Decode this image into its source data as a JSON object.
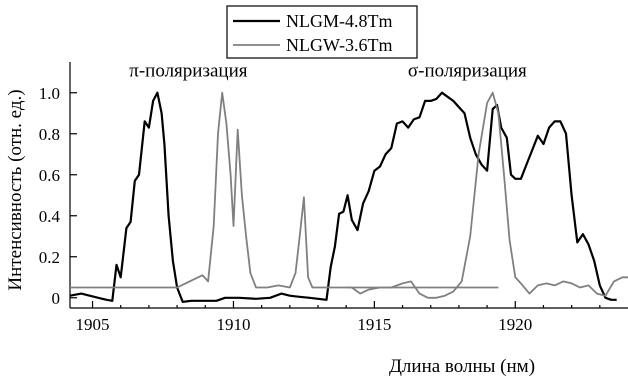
{
  "chart_data": {
    "type": "line",
    "title": "",
    "xlabel": "Длина волны (нм)",
    "ylabel": "Интенсивность (отн. ед.)",
    "xlim": [
      1904.2,
      1924
    ],
    "ylim": [
      -0.05,
      1.15
    ],
    "xticks": [
      1905,
      1910,
      1915,
      1920
    ],
    "yticks": [
      0,
      0.2,
      0.4,
      0.6,
      0.8,
      1.0
    ],
    "ytick_labels": [
      "0",
      "0.2",
      "0.4",
      "0.6",
      "0.8",
      "1.0"
    ],
    "grid": false,
    "legend_position": "top-center",
    "annotations": [
      {
        "text": "π-поляризация",
        "x": 1908.4,
        "y": 1.08
      },
      {
        "text": "σ-поляризация",
        "x": 1918.3,
        "y": 1.08
      }
    ],
    "series": [
      {
        "name": "NLGM-4.8Tm",
        "color": "#000000",
        "points": [
          [
            1904.2,
            0.01
          ],
          [
            1904.6,
            0.02
          ],
          [
            1904.9,
            0.01
          ],
          [
            1905.2,
            0.0
          ],
          [
            1905.5,
            -0.01
          ],
          [
            1905.7,
            -0.015
          ],
          [
            1905.85,
            0.16
          ],
          [
            1906.0,
            0.1
          ],
          [
            1906.2,
            0.34
          ],
          [
            1906.35,
            0.37
          ],
          [
            1906.5,
            0.57
          ],
          [
            1906.65,
            0.6
          ],
          [
            1906.85,
            0.86
          ],
          [
            1907.0,
            0.83
          ],
          [
            1907.15,
            0.96
          ],
          [
            1907.3,
            1.0
          ],
          [
            1907.45,
            0.9
          ],
          [
            1907.55,
            0.75
          ],
          [
            1907.7,
            0.4
          ],
          [
            1907.85,
            0.18
          ],
          [
            1908.0,
            0.05
          ],
          [
            1908.2,
            -0.02
          ],
          [
            1908.5,
            -0.015
          ],
          [
            1909.0,
            -0.015
          ],
          [
            1909.4,
            -0.015
          ],
          [
            1909.7,
            0.0
          ],
          [
            1910.2,
            0.0
          ],
          [
            1910.8,
            -0.005
          ],
          [
            1911.3,
            0.0
          ],
          [
            1911.7,
            0.02
          ],
          [
            1912.0,
            0.01
          ],
          [
            1912.3,
            0.005
          ],
          [
            1912.7,
            0.0
          ],
          [
            1913.0,
            -0.005
          ],
          [
            1913.3,
            -0.01
          ],
          [
            1913.45,
            0.15
          ],
          [
            1913.6,
            0.25
          ],
          [
            1913.75,
            0.41
          ],
          [
            1913.9,
            0.42
          ],
          [
            1914.05,
            0.5
          ],
          [
            1914.2,
            0.38
          ],
          [
            1914.4,
            0.33
          ],
          [
            1914.6,
            0.46
          ],
          [
            1914.8,
            0.52
          ],
          [
            1915.0,
            0.62
          ],
          [
            1915.2,
            0.64
          ],
          [
            1915.4,
            0.7
          ],
          [
            1915.6,
            0.73
          ],
          [
            1915.8,
            0.85
          ],
          [
            1916.0,
            0.86
          ],
          [
            1916.2,
            0.83
          ],
          [
            1916.4,
            0.87
          ],
          [
            1916.6,
            0.88
          ],
          [
            1916.8,
            0.96
          ],
          [
            1917.0,
            0.96
          ],
          [
            1917.2,
            0.97
          ],
          [
            1917.4,
            1.0
          ],
          [
            1917.6,
            0.98
          ],
          [
            1917.8,
            0.96
          ],
          [
            1918.0,
            0.93
          ],
          [
            1918.2,
            0.9
          ],
          [
            1918.4,
            0.78
          ],
          [
            1918.6,
            0.7
          ],
          [
            1918.8,
            0.65
          ],
          [
            1919.0,
            0.62
          ],
          [
            1919.2,
            0.92
          ],
          [
            1919.35,
            0.94
          ],
          [
            1919.5,
            0.83
          ],
          [
            1919.7,
            0.78
          ],
          [
            1919.85,
            0.6
          ],
          [
            1920.0,
            0.58
          ],
          [
            1920.2,
            0.58
          ],
          [
            1920.4,
            0.65
          ],
          [
            1920.6,
            0.72
          ],
          [
            1920.8,
            0.79
          ],
          [
            1921.0,
            0.75
          ],
          [
            1921.2,
            0.83
          ],
          [
            1921.4,
            0.86
          ],
          [
            1921.6,
            0.86
          ],
          [
            1921.8,
            0.8
          ],
          [
            1922.0,
            0.5
          ],
          [
            1922.2,
            0.27
          ],
          [
            1922.4,
            0.31
          ],
          [
            1922.6,
            0.26
          ],
          [
            1922.8,
            0.18
          ],
          [
            1923.0,
            0.06
          ],
          [
            1923.2,
            0.0
          ],
          [
            1923.4,
            -0.01
          ],
          [
            1923.6,
            -0.01
          ]
        ]
      },
      {
        "name": "NLGW-3.6Tm",
        "color": "#808080",
        "points": [
          [
            1904.2,
            0.05
          ],
          [
            1905.0,
            0.05
          ],
          [
            1906.0,
            0.05
          ],
          [
            1907.0,
            0.05
          ],
          [
            1908.0,
            0.05
          ],
          [
            1908.3,
            0.07
          ],
          [
            1908.6,
            0.09
          ],
          [
            1908.9,
            0.11
          ],
          [
            1909.1,
            0.08
          ],
          [
            1909.3,
            0.35
          ],
          [
            1909.45,
            0.8
          ],
          [
            1909.6,
            1.0
          ],
          [
            1909.75,
            0.85
          ],
          [
            1909.9,
            0.6
          ],
          [
            1910.0,
            0.35
          ],
          [
            1910.15,
            0.82
          ],
          [
            1910.3,
            0.5
          ],
          [
            1910.45,
            0.3
          ],
          [
            1910.6,
            0.12
          ],
          [
            1910.8,
            0.05
          ],
          [
            1911.2,
            0.05
          ],
          [
            1911.6,
            0.06
          ],
          [
            1912.0,
            0.05
          ],
          [
            1912.2,
            0.12
          ],
          [
            1912.35,
            0.3
          ],
          [
            1912.5,
            0.49
          ],
          [
            1912.65,
            0.1
          ],
          [
            1912.8,
            0.05
          ],
          [
            1913.5,
            0.05
          ],
          [
            1914.2,
            0.05
          ],
          [
            1914.5,
            0.02
          ],
          [
            1914.8,
            0.04
          ],
          [
            1915.2,
            0.05
          ],
          [
            1915.6,
            0.05
          ],
          [
            1916.0,
            0.07
          ],
          [
            1916.3,
            0.08
          ],
          [
            1916.6,
            0.02
          ],
          [
            1916.9,
            0.0
          ],
          [
            1917.2,
            0.0
          ],
          [
            1917.5,
            0.01
          ],
          [
            1917.8,
            0.03
          ],
          [
            1918.1,
            0.08
          ],
          [
            1918.4,
            0.3
          ],
          [
            1918.7,
            0.7
          ],
          [
            1919.0,
            0.95
          ],
          [
            1919.2,
            1.0
          ],
          [
            1919.4,
            0.9
          ],
          [
            1919.6,
            0.6
          ],
          [
            1919.8,
            0.28
          ],
          [
            1920.0,
            0.1
          ],
          [
            1920.2,
            0.07
          ],
          [
            1920.5,
            0.02
          ],
          [
            1920.8,
            0.06
          ],
          [
            1921.1,
            0.07
          ],
          [
            1921.4,
            0.06
          ],
          [
            1921.7,
            0.08
          ],
          [
            1922.0,
            0.07
          ],
          [
            1922.3,
            0.05
          ],
          [
            1922.6,
            0.06
          ],
          [
            1922.9,
            0.02
          ],
          [
            1923.2,
            0.01
          ],
          [
            1923.5,
            0.08
          ],
          [
            1923.8,
            0.1
          ],
          [
            1924.0,
            0.1
          ]
        ]
      },
      {
        "name": "",
        "color": "#808080",
        "points": [
          [
            1914.0,
            0.05
          ],
          [
            1915.5,
            0.05
          ],
          [
            1917.0,
            0.05
          ],
          [
            1919.4,
            0.05
          ]
        ]
      }
    ]
  }
}
